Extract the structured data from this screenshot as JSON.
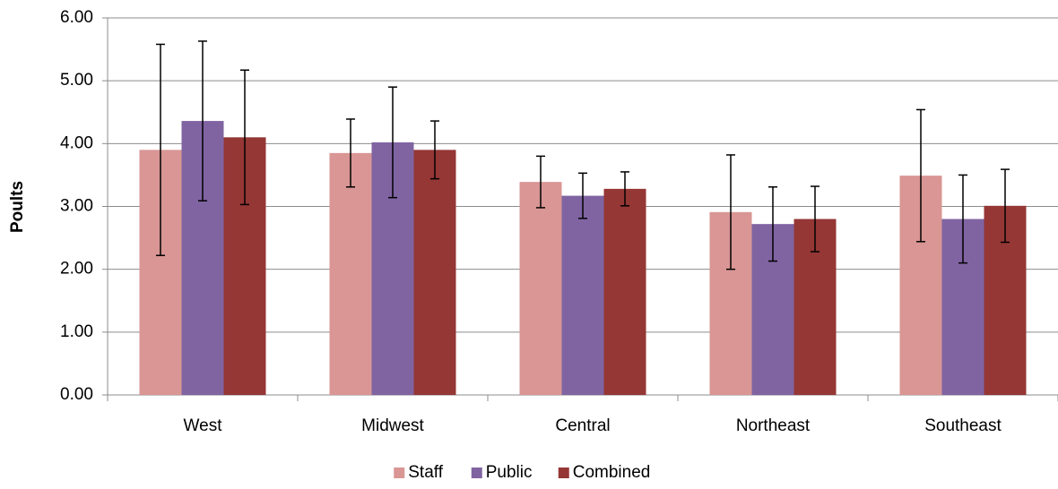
{
  "chart_data": {
    "type": "bar",
    "y_label": "Poults",
    "categories": [
      "West",
      "Midwest",
      "Central",
      "Northeast",
      "Southeast"
    ],
    "series": [
      {
        "name": "Staff",
        "color": "#d99694",
        "values": [
          3.9,
          3.85,
          3.39,
          2.91,
          3.49
        ],
        "errors": [
          1.68,
          0.54,
          0.41,
          0.91,
          1.05
        ]
      },
      {
        "name": "Public",
        "color": "#8064a2",
        "values": [
          4.36,
          4.02,
          3.17,
          2.72,
          2.8
        ],
        "errors": [
          1.27,
          0.88,
          0.36,
          0.59,
          0.7
        ]
      },
      {
        "name": "Combined",
        "color": "#953735",
        "values": [
          4.1,
          3.9,
          3.28,
          2.8,
          3.01
        ],
        "errors": [
          1.07,
          0.46,
          0.27,
          0.52,
          0.58
        ]
      }
    ],
    "ylim": [
      0,
      6
    ],
    "yticks": [
      {
        "value": 0,
        "label": "0.00"
      },
      {
        "value": 1,
        "label": "1.00"
      },
      {
        "value": 2,
        "label": "2.00"
      },
      {
        "value": 3,
        "label": "3.00"
      },
      {
        "value": 4,
        "label": "4.00"
      },
      {
        "value": 5,
        "label": "5.00"
      },
      {
        "value": 6,
        "label": "6.00"
      }
    ],
    "grid": true,
    "legend": "bottom"
  }
}
